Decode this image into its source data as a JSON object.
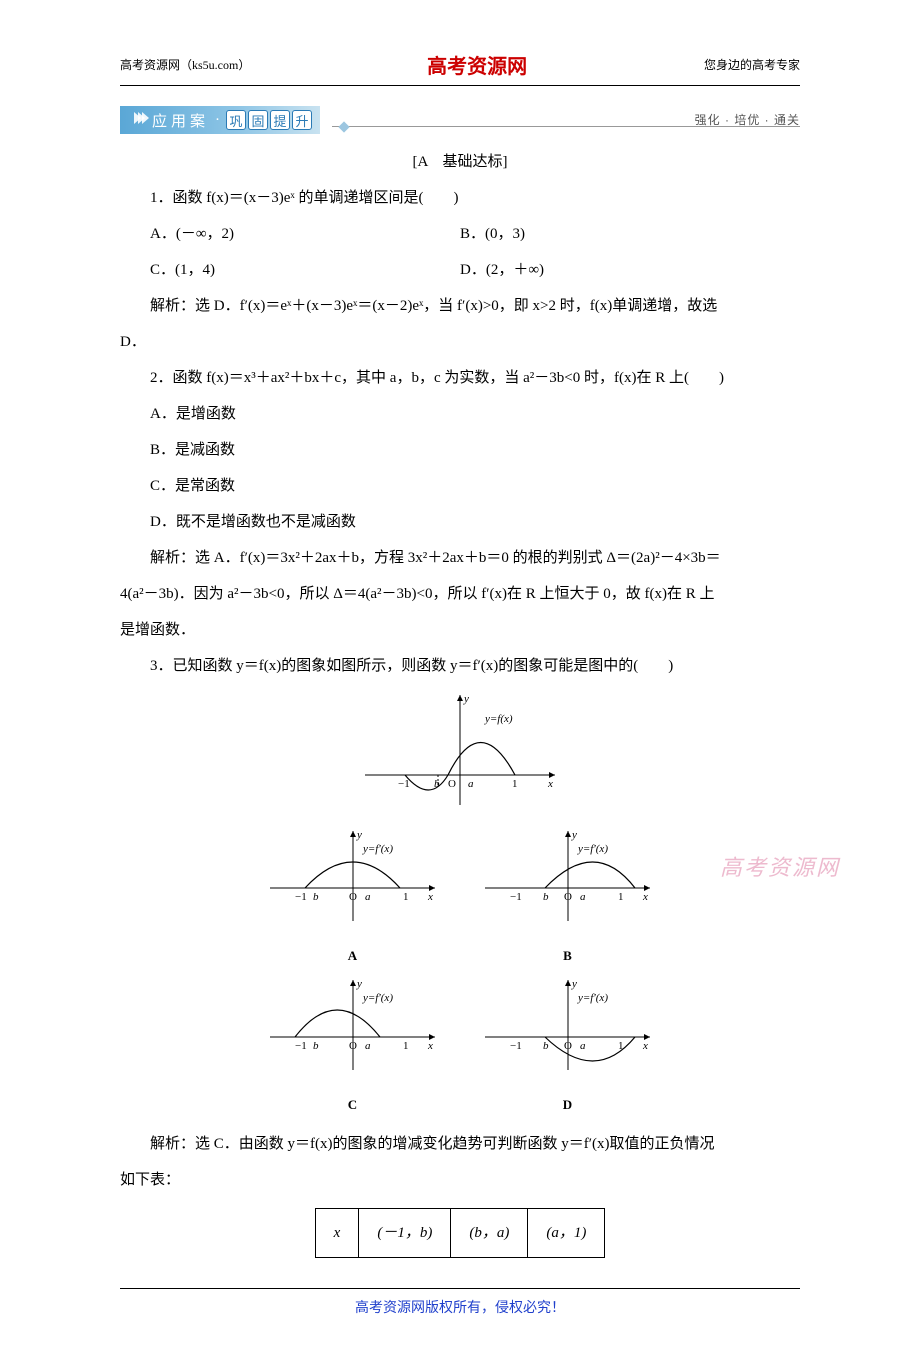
{
  "header": {
    "left": "高考资源网（ks5u.com）",
    "center": "高考资源网",
    "right": "您身边的高考专家"
  },
  "banner": {
    "label": "应用案",
    "pills": [
      "巩",
      "固",
      "提",
      "升"
    ],
    "tag": "强化 · 培优 · 通关"
  },
  "section_title": "[A　基础达标]",
  "q1": {
    "stem": "1．函数 f(x)＝(x－3)eˣ 的单调递增区间是(　　)",
    "A": "A．(－∞，2)",
    "B": "B．(0，3)",
    "C": "C．(1，4)",
    "D": "D．(2，＋∞)",
    "sol": "解析：选 D．f′(x)＝eˣ＋(x－3)eˣ＝(x－2)eˣ，当 f′(x)>0，即 x>2 时，f(x)单调递增，故选",
    "sol_tail": "D．"
  },
  "q2": {
    "stem": "2．函数 f(x)＝x³＋ax²＋bx＋c，其中 a，b，c 为实数，当 a²－3b<0 时，f(x)在 R 上(　　)",
    "A": "A．是增函数",
    "B": "B．是减函数",
    "C": "C．是常函数",
    "D": "D．既不是增函数也不是减函数",
    "sol1": "解析：选 A．f′(x)＝3x²＋2ax＋b，方程 3x²＋2ax＋b＝0 的根的判别式 Δ＝(2a)²－4×3b＝",
    "sol2": "4(a²－3b)．因为 a²－3b<0，所以 Δ＝4(a²－3b)<0，所以 f′(x)在 R 上恒大于 0，故 f(x)在 R 上",
    "sol3": "是增函数．"
  },
  "q3": {
    "stem": "3．已知函数 y＝f(x)的图象如图所示，则函数 y＝f′(x)的图象可能是图中的(　　)",
    "sol": "解析：选 C．由函数 y＝f(x)的图象的增减变化趋势可判断函数 y＝f′(x)取值的正负情况",
    "sol2": "如下表："
  },
  "table": {
    "h1": "x",
    "h2": "(－1，b)",
    "h3": "(b，a)",
    "h4": "(a，1)"
  },
  "footer": "高考资源网版权所有，侵权必究！",
  "watermark": "高考资源网",
  "charts": {
    "main": {
      "axis_color": "#000",
      "curve_color": "#000",
      "xmin": -1.2,
      "xmax": 1.4,
      "labels": {
        "y": "y",
        "x": "x",
        "O": "O",
        "fx": "y=f(x)",
        "a": "a",
        "b": "b",
        "m1": "−1",
        "p1": "1"
      }
    },
    "panels": {
      "A": {
        "label": "A",
        "curve": "hump_center",
        "fx": "y=f′(x)"
      },
      "B": {
        "label": "B",
        "curve": "hump_right",
        "fx": "y=f′(x)"
      },
      "C": {
        "label": "C",
        "curve": "hump_left",
        "fx": "y=f′(x)"
      },
      "D": {
        "label": "D",
        "curve": "valley_right",
        "fx": "y=f′(x)"
      }
    },
    "style": {
      "width": 170,
      "height": 100,
      "stroke": "#000",
      "stroke_width": 1,
      "font_size": 11
    }
  }
}
